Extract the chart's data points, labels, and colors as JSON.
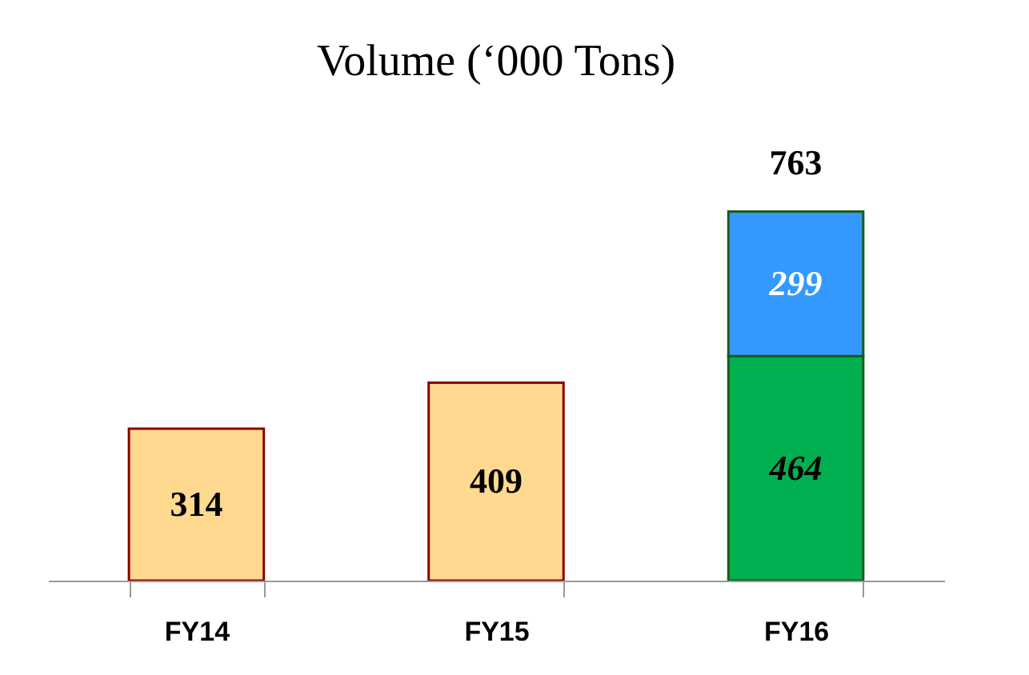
{
  "chart_data": {
    "type": "bar",
    "title": "Volume (‘000 Tons)",
    "categories": [
      "FY14",
      "FY15",
      "FY16"
    ],
    "stacked": true,
    "data_labels": true,
    "totals": [
      null,
      null,
      "763"
    ],
    "series": [
      {
        "colors": [
          "#ffd990",
          "#ffd990",
          "#00b050"
        ],
        "values": [
          314,
          409,
          464
        ]
      },
      {
        "color": "#3399ff",
        "values": [
          null,
          null,
          299
        ]
      }
    ]
  }
}
